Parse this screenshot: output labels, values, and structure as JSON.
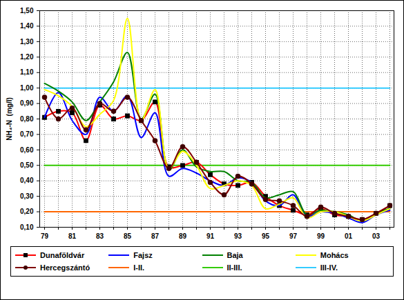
{
  "chart_data": {
    "type": "line",
    "y_label": "NH₄-N  (mg/l)",
    "categories": [
      "79",
      null,
      "81",
      null,
      "83",
      null,
      "85",
      null,
      "87",
      null,
      "89",
      null,
      "91",
      null,
      "93",
      null,
      "95",
      null,
      "97",
      null,
      "99",
      null,
      "01",
      null,
      "03",
      null
    ],
    "ylim": [
      0.1,
      1.5
    ],
    "yticks": [
      {
        "value": 0.1,
        "label": "0,10"
      },
      {
        "value": 0.2,
        "label": "0,20"
      },
      {
        "value": 0.3,
        "label": "0,30"
      },
      {
        "value": 0.4,
        "label": "0,40"
      },
      {
        "value": 0.5,
        "label": "0,50"
      },
      {
        "value": 0.6,
        "label": "0,60"
      },
      {
        "value": 0.7,
        "label": "0,70"
      },
      {
        "value": 0.8,
        "label": "0,80"
      },
      {
        "value": 0.9,
        "label": "0,90"
      },
      {
        "value": 1.0,
        "label": "1,00"
      },
      {
        "value": 1.1,
        "label": "1,10"
      },
      {
        "value": 1.2,
        "label": "1,20"
      },
      {
        "value": 1.3,
        "label": "1,30"
      },
      {
        "value": 1.4,
        "label": "1,40"
      },
      {
        "value": 1.5,
        "label": "1,50"
      }
    ],
    "grid": true,
    "legend": "bottom",
    "series": [
      {
        "name": "Dunaföldvár",
        "color": "#ff0000",
        "marker": "square",
        "values": [
          0.81,
          0.85,
          0.84,
          0.66,
          0.89,
          0.8,
          0.82,
          0.79,
          0.91,
          0.49,
          0.5,
          0.52,
          0.44,
          0.38,
          0.37,
          0.39,
          0.3,
          0.24,
          0.21,
          0.18,
          0.22,
          0.18,
          0.17,
          0.15,
          0.19,
          0.24
        ]
      },
      {
        "name": "Fajsz",
        "color": "#0000ff",
        "values": [
          0.81,
          0.97,
          0.79,
          0.7,
          0.94,
          0.85,
          0.95,
          0.68,
          0.84,
          0.43,
          0.48,
          0.45,
          0.4,
          0.37,
          0.42,
          0.39,
          0.27,
          0.24,
          0.31,
          0.17,
          0.2,
          0.19,
          0.16,
          0.13,
          0.18,
          0.21
        ]
      },
      {
        "name": "Baja",
        "color": "#008000",
        "values": [
          1.03,
          0.98,
          0.91,
          0.79,
          0.91,
          1.04,
          1.23,
          0.8,
          0.96,
          0.47,
          0.6,
          0.49,
          0.46,
          0.46,
          0.4,
          0.39,
          0.29,
          0.31,
          0.33,
          0.18,
          0.21,
          0.2,
          0.18,
          0.14,
          0.19,
          0.22
        ]
      },
      {
        "name": "Mohács",
        "color": "#ffff00",
        "values": [
          0.99,
          0.95,
          0.88,
          0.75,
          0.83,
          0.92,
          1.45,
          0.79,
          0.99,
          0.48,
          0.59,
          0.5,
          0.35,
          0.37,
          0.4,
          0.37,
          0.22,
          0.25,
          0.29,
          0.16,
          0.2,
          0.2,
          0.17,
          0.14,
          0.18,
          0.22
        ]
      },
      {
        "name": "Hercegszántó",
        "color": "#800000",
        "marker": "circle",
        "values": [
          0.94,
          0.8,
          0.87,
          0.73,
          0.9,
          0.85,
          0.94,
          0.79,
          0.66,
          0.48,
          0.62,
          0.52,
          0.39,
          0.31,
          0.43,
          0.38,
          0.28,
          0.27,
          0.24,
          0.17,
          0.23,
          0.19,
          0.17,
          0.15,
          0.19,
          0.24
        ]
      },
      {
        "name": "I-II.",
        "color": "#ff6600",
        "line_style": "straight",
        "values": [
          0.2,
          0.2,
          0.2,
          0.2,
          0.2,
          0.2,
          0.2,
          0.2,
          0.2,
          0.2,
          0.2,
          0.2,
          0.2,
          0.2,
          0.2,
          0.2,
          0.2,
          0.2,
          0.2,
          0.2,
          0.2,
          0.2,
          0.2,
          0.2,
          0.2,
          0.2
        ]
      },
      {
        "name": "II-III.",
        "color": "#33cc00",
        "line_style": "straight",
        "values": [
          0.5,
          0.5,
          0.5,
          0.5,
          0.5,
          0.5,
          0.5,
          0.5,
          0.5,
          0.5,
          0.5,
          0.5,
          0.5,
          0.5,
          0.5,
          0.5,
          0.5,
          0.5,
          0.5,
          0.5,
          0.5,
          0.5,
          0.5,
          0.5,
          0.5,
          0.5
        ]
      },
      {
        "name": "III-IV.",
        "color": "#33ccff",
        "line_style": "straight",
        "values": [
          1.0,
          1.0,
          1.0,
          1.0,
          1.0,
          1.0,
          1.0,
          1.0,
          1.0,
          1.0,
          1.0,
          1.0,
          1.0,
          1.0,
          1.0,
          1.0,
          1.0,
          1.0,
          1.0,
          1.0,
          1.0,
          1.0,
          1.0,
          1.0,
          1.0,
          1.0
        ]
      }
    ]
  }
}
